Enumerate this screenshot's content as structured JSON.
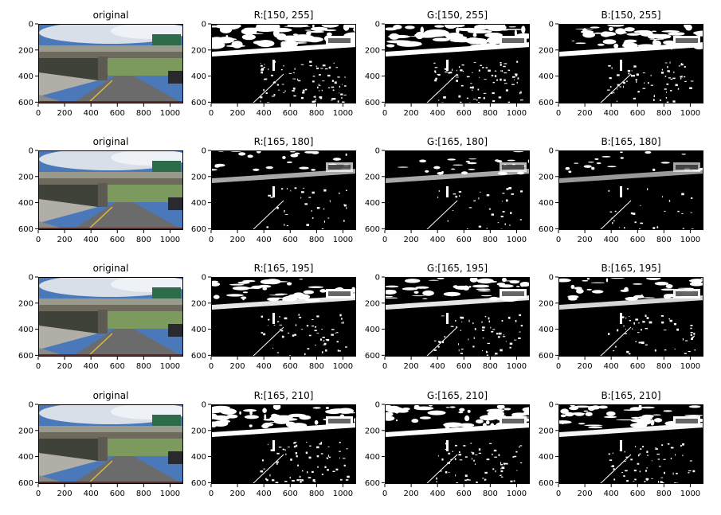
{
  "figure": {
    "rows": [
      {
        "titles": [
          "original",
          "R:[150, 255]",
          "G:[150, 255]",
          "B:[150, 255]"
        ]
      },
      {
        "titles": [
          "original",
          "R:[165, 180]",
          "G:[165, 180]",
          "B:[165, 180]"
        ]
      },
      {
        "titles": [
          "original",
          "R:[165, 195]",
          "G:[165, 195]",
          "B:[165, 195]"
        ]
      },
      {
        "titles": [
          "original",
          "R:[165, 210]",
          "G:[165, 210]",
          "B:[165, 210]"
        ]
      }
    ],
    "x_ticks": [
      "0",
      "200",
      "400",
      "600",
      "800",
      "1000"
    ],
    "y_ticks": [
      "0",
      "200",
      "400",
      "600"
    ],
    "x_tick_values": [
      0,
      200,
      400,
      600,
      800,
      1000
    ],
    "y_tick_values": [
      0,
      200,
      400,
      600
    ],
    "image_width": 1100,
    "image_height": 610,
    "colors": {
      "sky": "#4a78b8",
      "road": "#6b6b6b",
      "sign": "#2e6b4a",
      "mask_on": "#ffffff",
      "mask_off": "#000000"
    }
  }
}
